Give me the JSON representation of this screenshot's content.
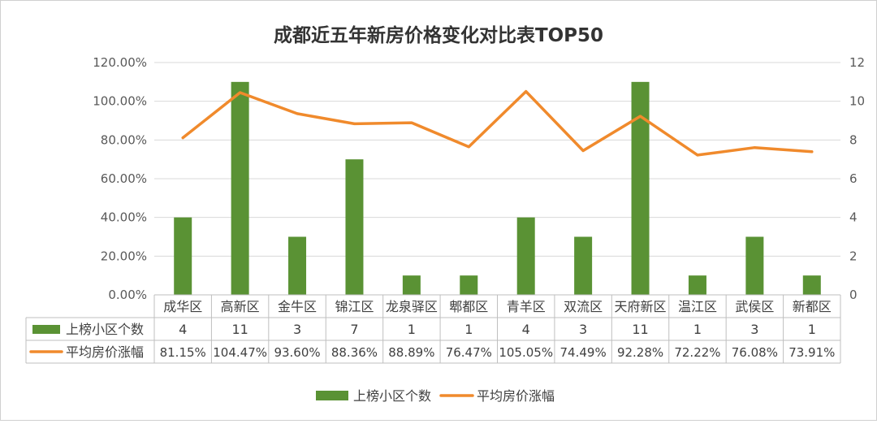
{
  "chart_data": {
    "type": "bar",
    "title": "成都近五年新房价格变化对比表TOP50",
    "categories": [
      "成华区",
      "高新区",
      "金牛区",
      "锦江区",
      "龙泉驿区",
      "郫都区",
      "青羊区",
      "双流区",
      "天府新区",
      "温江区",
      "武侯区",
      "新都区"
    ],
    "y_left_ticks": [
      "0.00%",
      "20.00%",
      "40.00%",
      "60.00%",
      "80.00%",
      "100.00%",
      "120.00%"
    ],
    "y_left_lim": [
      0,
      120
    ],
    "y_right_ticks": [
      "0",
      "2",
      "4",
      "6",
      "8",
      "10",
      "12"
    ],
    "y_right_lim": [
      0,
      12
    ],
    "grid": true,
    "legend_position": "bottom",
    "series": [
      {
        "name": "上榜小区个数",
        "type": "bar",
        "axis": "right",
        "color": "#5a9234",
        "values": [
          4,
          11,
          3,
          7,
          1,
          1,
          4,
          3,
          11,
          1,
          3,
          1
        ],
        "labels": [
          "4",
          "11",
          "3",
          "7",
          "1",
          "1",
          "4",
          "3",
          "11",
          "1",
          "3",
          "1"
        ]
      },
      {
        "name": "平均房价涨幅",
        "type": "line",
        "axis": "left",
        "color": "#f08a2c",
        "values": [
          81.15,
          104.47,
          93.6,
          88.36,
          88.89,
          76.47,
          105.05,
          74.49,
          92.28,
          72.22,
          76.08,
          73.91
        ],
        "labels": [
          "81.15%",
          "104.47%",
          "93.60%",
          "88.36%",
          "88.89%",
          "76.47%",
          "105.05%",
          "74.49%",
          "92.28%",
          "72.22%",
          "76.08%",
          "73.91%"
        ]
      }
    ]
  }
}
